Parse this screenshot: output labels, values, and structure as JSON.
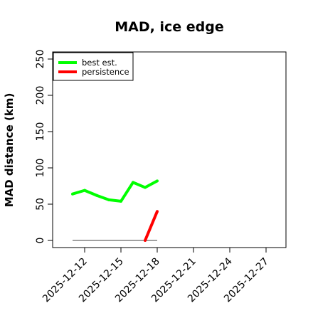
{
  "chart_data": {
    "type": "line",
    "title": "MAD, ice edge",
    "xlabel": "",
    "ylabel": "MAD distance (km)",
    "ylim": [
      0,
      250
    ],
    "xlim": [
      "2025-12-10",
      "2025-12-28"
    ],
    "y_ticks": [
      0,
      50,
      100,
      150,
      200,
      250
    ],
    "x_ticks": [
      "2025-12-12",
      "2025-12-15",
      "2025-12-18",
      "2025-12-21",
      "2025-12-24",
      "2025-12-27"
    ],
    "legend_position": "top-left",
    "series": [
      {
        "name": "best est.",
        "color": "#00ff00",
        "x": [
          "2025-12-11",
          "2025-12-12",
          "2025-12-13",
          "2025-12-14",
          "2025-12-15",
          "2025-12-16",
          "2025-12-17",
          "2025-12-18"
        ],
        "y": [
          64,
          69,
          62,
          56,
          54,
          80,
          73,
          82
        ]
      },
      {
        "name": "persistence",
        "color": "#ff0000",
        "x": [
          "2025-12-17",
          "2025-12-18"
        ],
        "y": [
          0,
          40
        ]
      }
    ],
    "reference_line": {
      "color": "#808080",
      "x": [
        "2025-12-11",
        "2025-12-18"
      ],
      "y": [
        0,
        0
      ]
    }
  }
}
